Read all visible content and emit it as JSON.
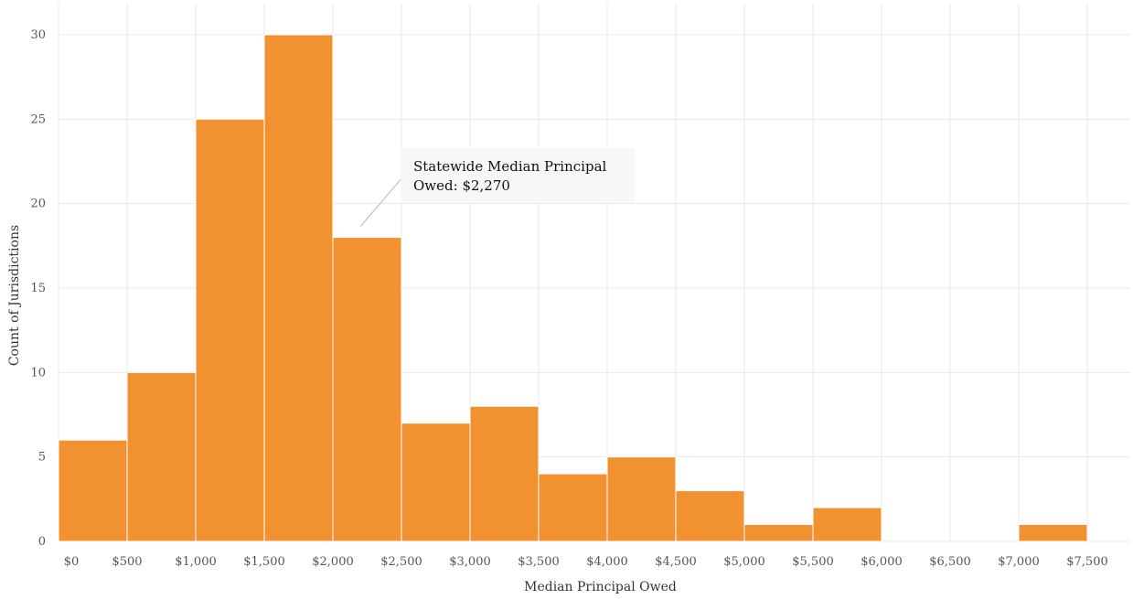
{
  "chart_data": {
    "type": "bar",
    "title": "",
    "xlabel": "Median Principal Owed",
    "ylabel": "Count of Jurisdictions",
    "bin_edges": [
      0,
      500,
      1000,
      1500,
      2000,
      2500,
      3000,
      3500,
      4000,
      4500,
      5000,
      5500,
      6000,
      6500,
      7000,
      7500
    ],
    "values": [
      6,
      10,
      25,
      30,
      18,
      7,
      8,
      4,
      5,
      3,
      1,
      2,
      0,
      0,
      1
    ],
    "xlim": [
      0,
      7500
    ],
    "ylim": [
      0,
      30
    ],
    "x_ticks": [
      0,
      500,
      1000,
      1500,
      2000,
      2500,
      3000,
      3500,
      4000,
      4500,
      5000,
      5500,
      6000,
      6500,
      7000,
      7500
    ],
    "x_tick_labels": [
      "$0",
      "$500",
      "$1,000",
      "$1,500",
      "$2,000",
      "$2,500",
      "$3,000",
      "$3,500",
      "$4,000",
      "$4,500",
      "$5,000",
      "$5,500",
      "$6,000",
      "$6,500",
      "$7,000",
      "$7,500"
    ],
    "y_ticks": [
      0,
      5,
      10,
      15,
      20,
      25,
      30
    ],
    "y_tick_labels": [
      "0",
      "5",
      "10",
      "15",
      "20",
      "25",
      "30"
    ],
    "grid": true,
    "colors": {
      "bar": "#f19130"
    },
    "annotation": {
      "lines": [
        "Statewide Median Principal",
        "Owed: $2,270"
      ],
      "x": 2270,
      "y": 18.5
    }
  }
}
